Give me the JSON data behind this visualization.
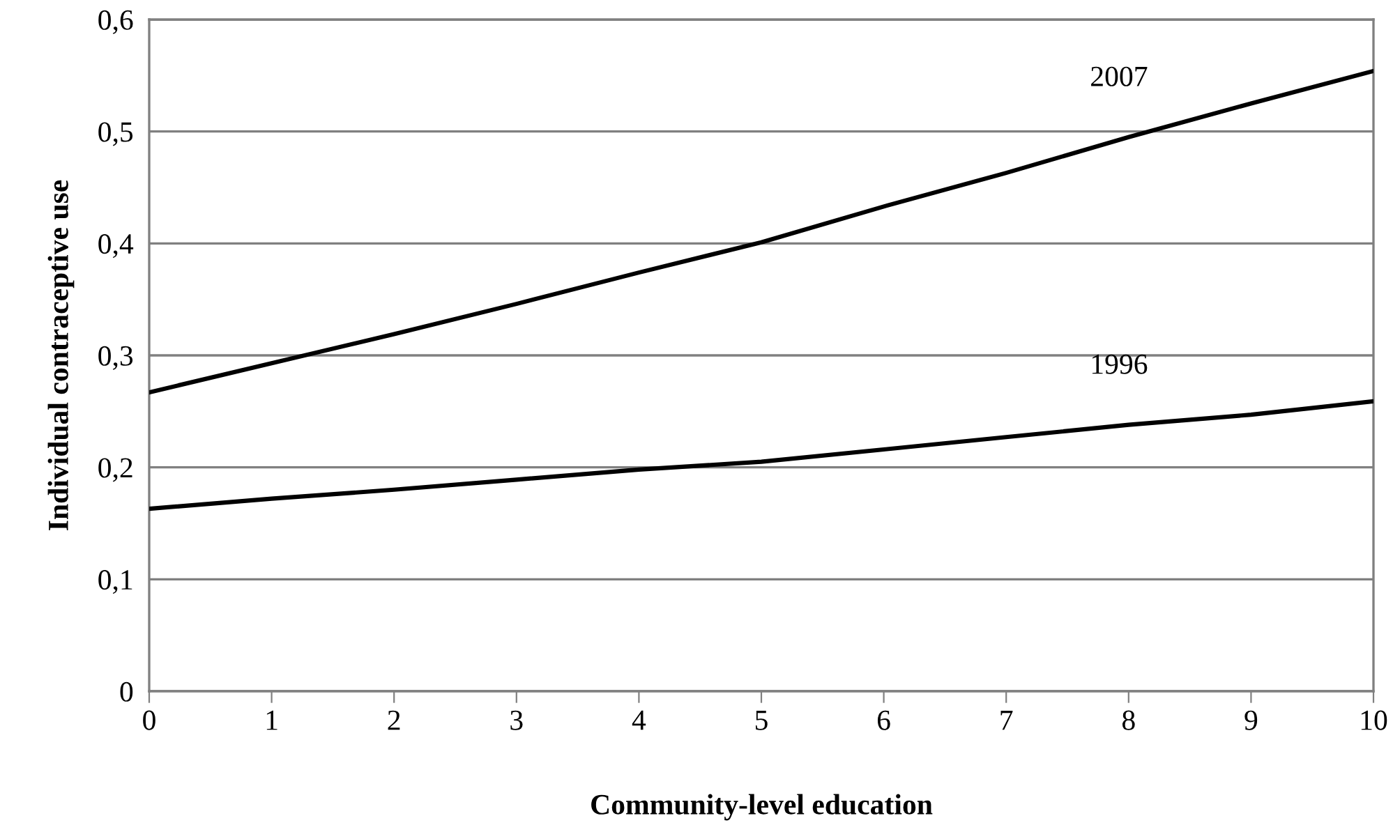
{
  "chart_data": {
    "type": "line",
    "xlabel": "Community-level education",
    "ylabel": "Individual contraceptive use",
    "x": [
      0,
      1,
      2,
      3,
      4,
      5,
      6,
      7,
      8,
      9,
      10
    ],
    "series": [
      {
        "name": "2007",
        "color": "#000000",
        "values": [
          0.267,
          0.293,
          0.319,
          0.346,
          0.374,
          0.401,
          0.433,
          0.463,
          0.495,
          0.525,
          0.554
        ]
      },
      {
        "name": "1996",
        "color": "#000000",
        "values": [
          0.163,
          0.172,
          0.18,
          0.189,
          0.198,
          0.205,
          0.216,
          0.227,
          0.238,
          0.247,
          0.259
        ]
      }
    ],
    "xlim": [
      0,
      10
    ],
    "xticks": [
      0,
      1,
      2,
      3,
      4,
      5,
      6,
      7,
      8,
      9,
      10
    ],
    "ylim": [
      0,
      0.6
    ],
    "yticks": [
      0,
      {
        "value": 0.1,
        "label": "0,1"
      },
      {
        "value": 0.2,
        "label": "0,2"
      },
      {
        "value": 0.3,
        "label": "0,3"
      },
      {
        "value": 0.4,
        "label": "0,4"
      },
      {
        "value": 0.5,
        "label": "0,5"
      },
      {
        "value": 0.6,
        "label": "0,6"
      }
    ],
    "grid": "y",
    "legend": false,
    "marker": "none",
    "line_style": "solid"
  }
}
